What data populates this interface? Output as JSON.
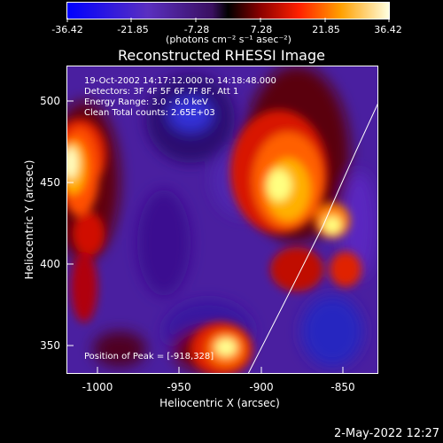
{
  "colorbar": {
    "tick_labels": [
      "-36.42",
      "-21.85",
      "-7.28",
      "7.28",
      "21.85",
      "36.42"
    ],
    "units": "(photons cm⁻² s⁻¹ asec⁻²)"
  },
  "title": "Reconstructed RHESSI Image",
  "info": {
    "line1": "19-Oct-2002 14:17:12.000 to 14:18:48.000",
    "line2": "Detectors: 3F 4F 5F 6F 7F 8F, Att 1",
    "line3": "Energy Range: 3.0 - 6.0 keV",
    "line4": "Clean    Total counts: 2.65E+03"
  },
  "peak_label": "Position of Peak = [-918,328]",
  "axes": {
    "xlabel": "Heliocentric X (arcsec)",
    "ylabel": "Heliocentric Y (arcsec)",
    "x_ticks": [
      "-1000",
      "-950",
      "-900",
      "-850"
    ],
    "y_ticks": [
      "500",
      "450",
      "400",
      "350"
    ],
    "x_range": [
      -1012,
      -822
    ],
    "y_range": [
      330,
      520
    ]
  },
  "timestamp": "2-May-2022 12:27",
  "colors": {
    "background": "#000000",
    "text": "#ffffff",
    "limb": "#ffffff"
  }
}
